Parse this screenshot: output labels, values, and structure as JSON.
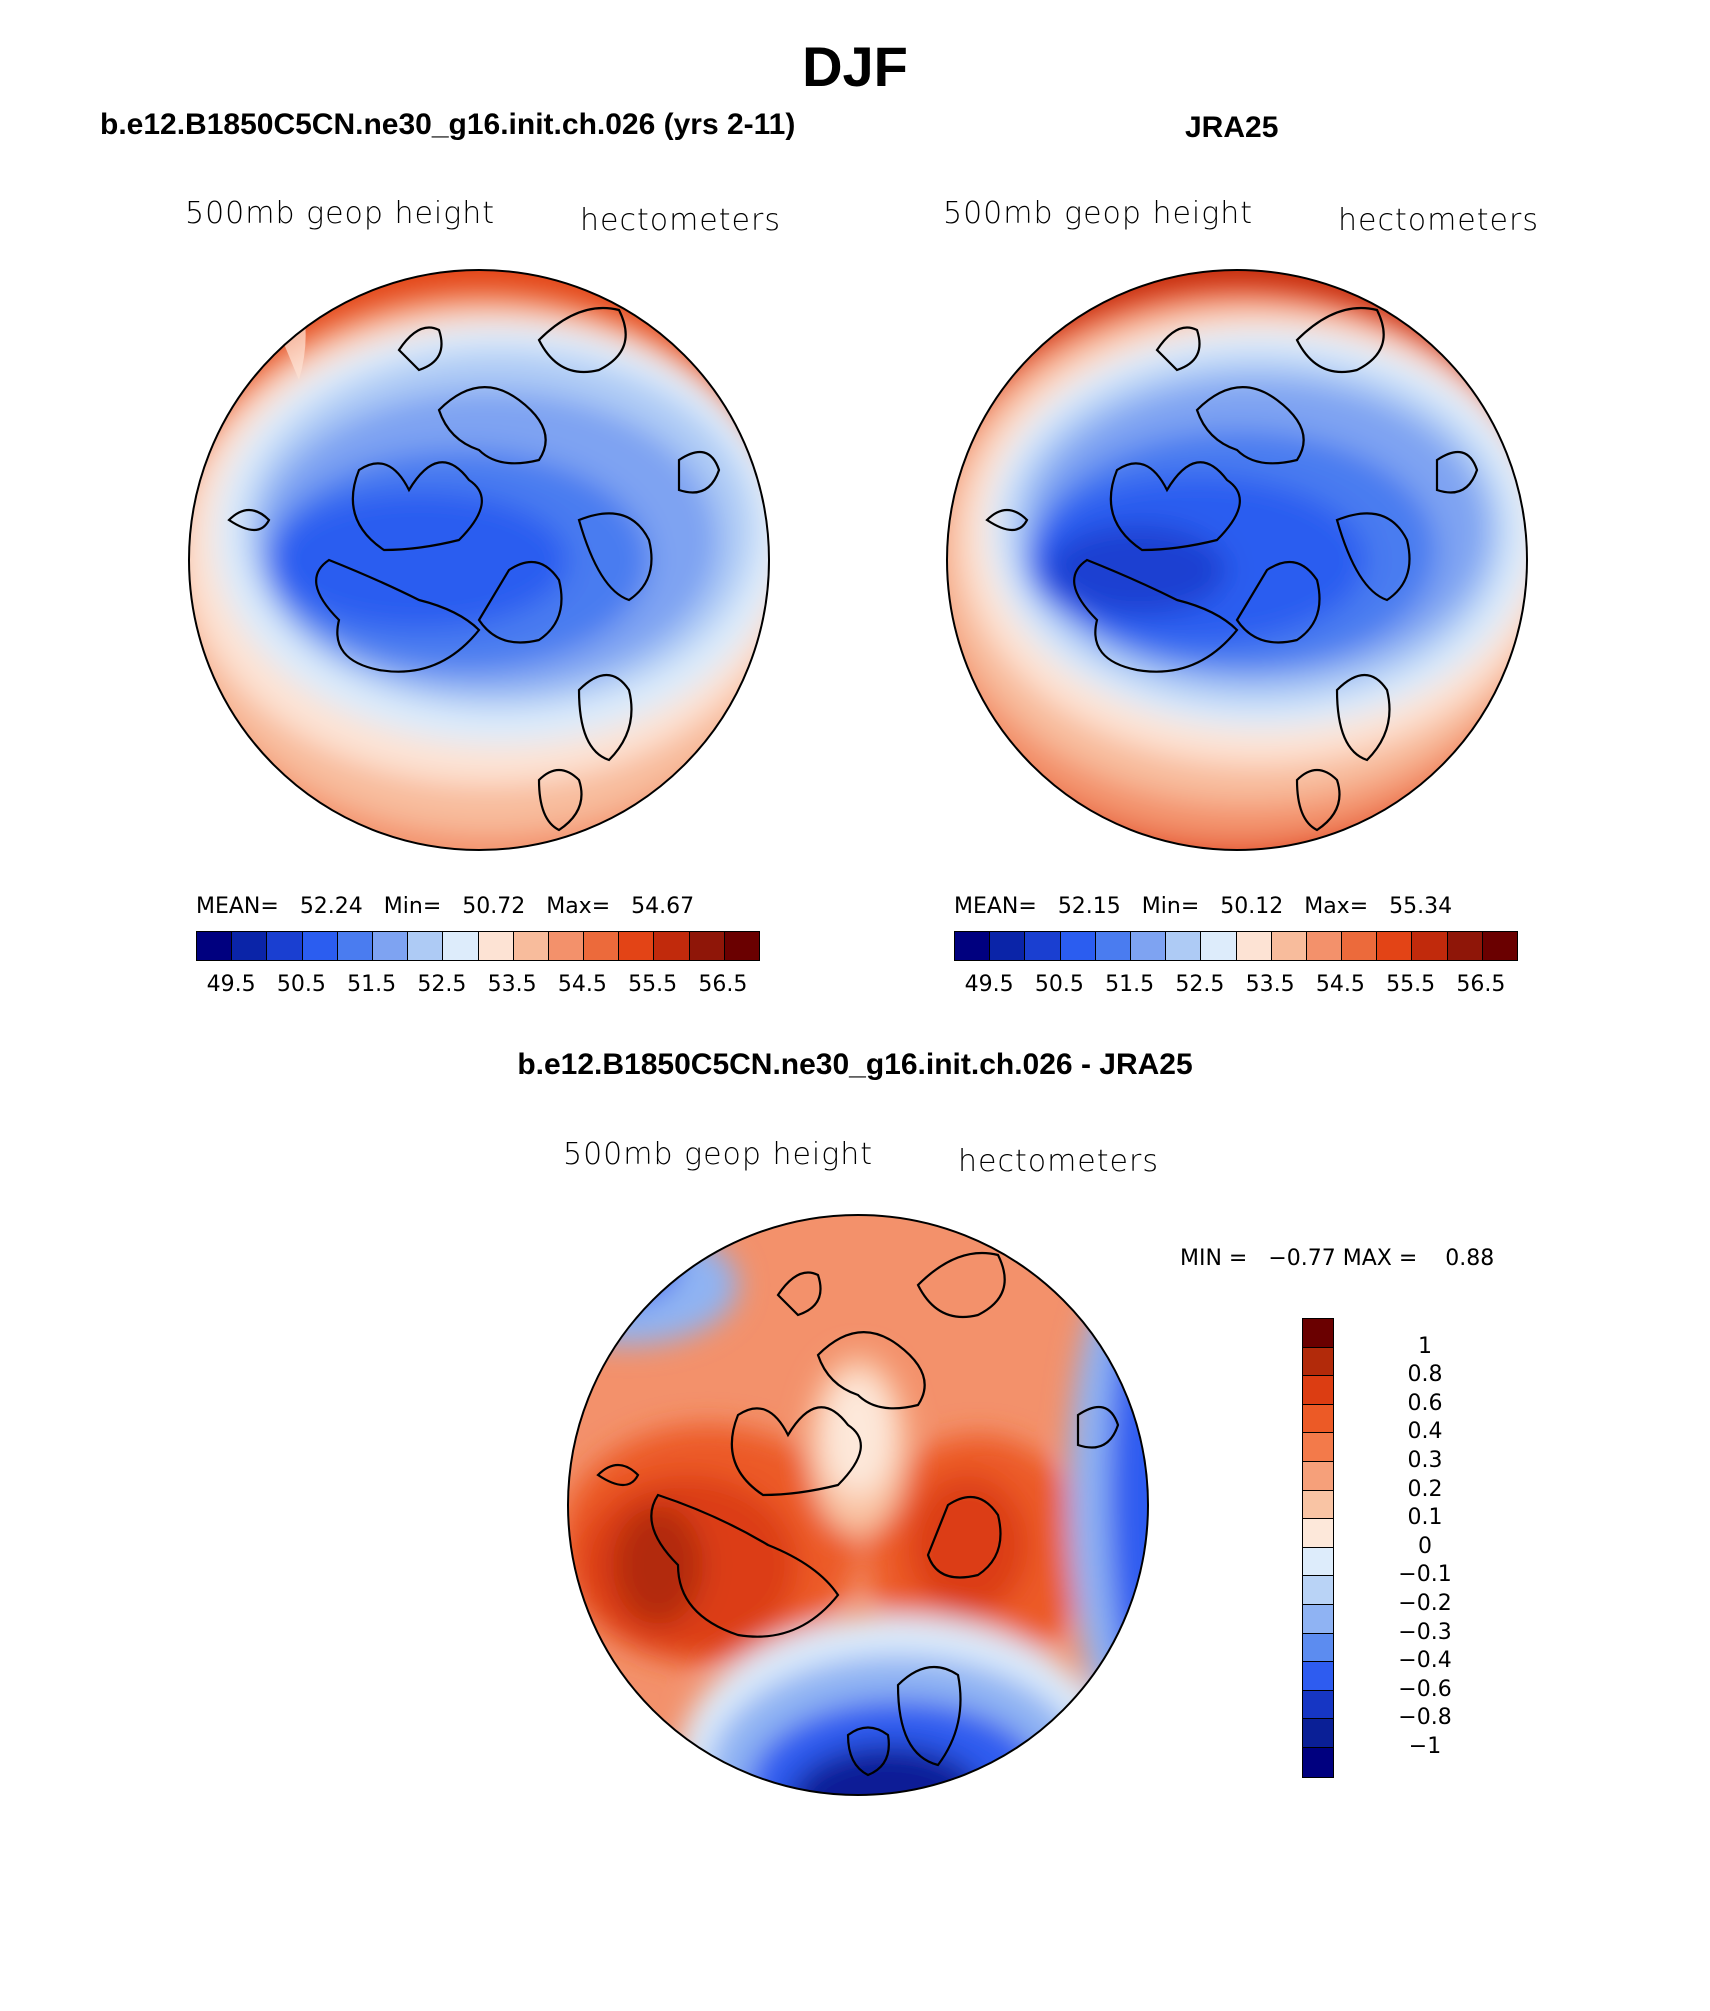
{
  "title": "DJF",
  "panels": {
    "model": {
      "heading": "b.e12.B1850C5CN.ne30_g16.init.ch.026 (yrs 2-11)",
      "var_label": "500mb geop height",
      "units": "hectometers",
      "stats": {
        "mean_label": "MEAN=",
        "mean": "52.24",
        "min_label": "Min=",
        "min": "50.72",
        "max_label": "Max=",
        "max": "54.67"
      }
    },
    "obs": {
      "heading": "JRA25",
      "var_label": "500mb geop height",
      "units": "hectometers",
      "stats": {
        "mean_label": "MEAN=",
        "mean": "52.15",
        "min_label": "Min=",
        "min": "50.12",
        "max_label": "Max=",
        "max": "55.34"
      }
    },
    "diff": {
      "heading": "b.e12.B1850C5CN.ne30_g16.init.ch.026 - JRA25",
      "var_label": "500mb geop height",
      "units": "hectometers",
      "stats": {
        "min_label": "MIN =",
        "min": "−0.77",
        "max_label": "MAX =",
        "max": "0.88"
      }
    }
  },
  "chart_data": [
    {
      "type": "heatmap",
      "title": "500mb geop height (model, DJF)",
      "units": "hectometers",
      "projection": "north polar stereographic",
      "colorbar_ticks": [
        "49.5",
        "50.5",
        "51.5",
        "52.5",
        "53.5",
        "54.5",
        "55.5",
        "56.5"
      ],
      "levels": [
        49.5,
        50,
        50.5,
        51,
        51.5,
        52,
        52.5,
        53,
        53.5,
        54,
        54.5,
        55,
        55.5,
        56,
        56.5
      ],
      "mean": 52.24,
      "min": 50.72,
      "max": 54.67
    },
    {
      "type": "heatmap",
      "title": "500mb geop height (JRA25, DJF)",
      "units": "hectometers",
      "projection": "north polar stereographic",
      "colorbar_ticks": [
        "49.5",
        "50.5",
        "51.5",
        "52.5",
        "53.5",
        "54.5",
        "55.5",
        "56.5"
      ],
      "levels": [
        49.5,
        50,
        50.5,
        51,
        51.5,
        52,
        52.5,
        53,
        53.5,
        54,
        54.5,
        55,
        55.5,
        56,
        56.5
      ],
      "mean": 52.15,
      "min": 50.12,
      "max": 55.34
    },
    {
      "type": "heatmap",
      "title": "500mb geop height difference (model - JRA25)",
      "units": "hectometers",
      "projection": "north polar stereographic",
      "colorbar_ticks": [
        "1",
        "0.8",
        "0.6",
        "0.4",
        "0.3",
        "0.2",
        "0.1",
        "0",
        "−0.1",
        "−0.2",
        "−0.3",
        "−0.4",
        "−0.6",
        "−0.8",
        "−1"
      ],
      "min": -0.77,
      "max": 0.88
    }
  ],
  "colors": {
    "sequential": [
      "#00007f",
      "#0a24a8",
      "#1a3fd1",
      "#2b5df0",
      "#4a7cf0",
      "#7ea3f2",
      "#aecbf5",
      "#ddecfb",
      "#fde3d4",
      "#f8bc9c",
      "#f3916b",
      "#ec6a3b",
      "#e34416",
      "#c12a0c",
      "#8f1608",
      "#6a0000"
    ],
    "diverging": [
      "#6a0000",
      "#b22a0a",
      "#dc3d12",
      "#ec5a26",
      "#f37a4a",
      "#f6a07a",
      "#f9c4a4",
      "#fde8da",
      "#ddecfb",
      "#b9d3f6",
      "#8fb3f3",
      "#5c8cf0",
      "#2e5cf0",
      "#1636c4",
      "#0a1f96",
      "#00007f"
    ]
  }
}
